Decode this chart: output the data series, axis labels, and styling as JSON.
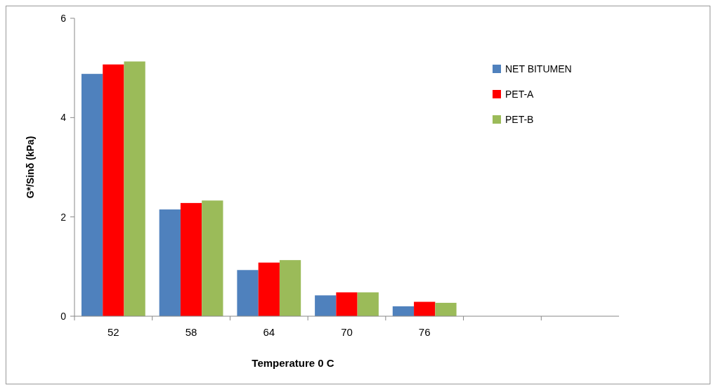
{
  "chart_data": {
    "type": "bar",
    "xlabel": "Temperature 0 C",
    "ylabel": "G*/Sinδ (kPa)",
    "categories": [
      "52",
      "58",
      "64",
      "70",
      "76",
      null,
      null
    ],
    "series": [
      {
        "name": "NET BITUMEN",
        "color": "#4f81bd",
        "values": [
          4.88,
          2.15,
          0.93,
          0.42,
          0.2,
          null,
          null
        ]
      },
      {
        "name": "PET-A",
        "color": "#ff0000",
        "values": [
          5.07,
          2.28,
          1.08,
          0.48,
          0.29,
          null,
          null
        ]
      },
      {
        "name": "PET-B",
        "color": "#9bbb59",
        "values": [
          5.13,
          2.33,
          1.13,
          0.48,
          0.27,
          null,
          null
        ]
      }
    ],
    "ylim": [
      0,
      6
    ],
    "yticks": [
      0,
      2,
      4,
      6
    ],
    "grid": false,
    "legend": "top right"
  }
}
